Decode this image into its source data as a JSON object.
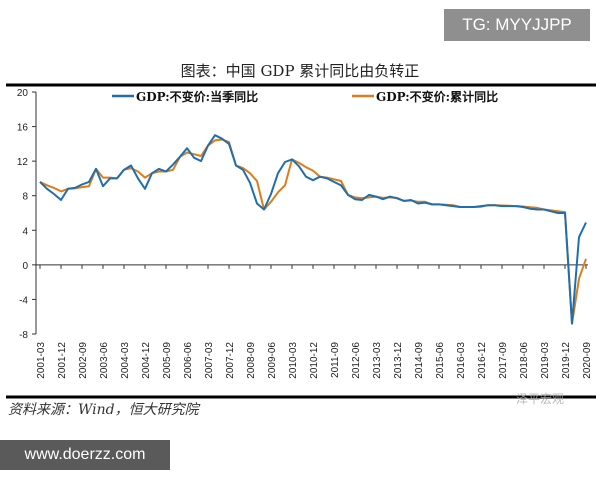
{
  "badge": "TG: MYYJJPP",
  "footer_site": "www.doerzz.com",
  "watermark": "泽平宏观",
  "source": "资料来源：Wind，恒大研究院",
  "chart_data": {
    "type": "line",
    "title": "图表：中国 GDP 累计同比由负转正",
    "xlabel": "",
    "ylabel": "",
    "ylim": [
      -8,
      20
    ],
    "yticks": [
      20,
      16,
      12,
      8,
      4,
      0,
      -4,
      -8
    ],
    "grid": false,
    "legend": "top",
    "x_start": "2001-03",
    "x_end": "2020-09",
    "x_frequency": "quarterly",
    "xtick_labels": [
      "2001-03",
      "2001-12",
      "2002-09",
      "2003-06",
      "2004-03",
      "2004-12",
      "2005-09",
      "2006-06",
      "2007-03",
      "2007-12",
      "2008-09",
      "2009-06",
      "2010-03",
      "2010-12",
      "2011-09",
      "2012-06",
      "2013-03",
      "2013-12",
      "2014-09",
      "2015-06",
      "2016-03",
      "2016-12",
      "2017-09",
      "2018-06",
      "2019-03",
      "2019-12",
      "2020-09"
    ],
    "series": [
      {
        "name": "GDP:不变价:当季同比",
        "color": "#1f6fae",
        "values": [
          9.6,
          8.8,
          8.2,
          7.5,
          8.8,
          8.9,
          9.3,
          9.6,
          11.1,
          9.1,
          10.0,
          10.0,
          11.0,
          11.5,
          10.0,
          8.8,
          10.6,
          11.1,
          10.8,
          11.6,
          12.5,
          13.5,
          12.4,
          12.0,
          13.8,
          15.0,
          14.6,
          14.0,
          11.5,
          11.0,
          9.5,
          7.1,
          6.4,
          8.2,
          10.6,
          11.9,
          12.2,
          11.4,
          10.2,
          9.8,
          10.2,
          10.0,
          9.6,
          9.2,
          8.1,
          7.6,
          7.5,
          8.1,
          7.9,
          7.6,
          7.9,
          7.7,
          7.4,
          7.5,
          7.1,
          7.2,
          7.0,
          7.0,
          6.9,
          6.8,
          6.7,
          6.7,
          6.7,
          6.8,
          6.9,
          6.9,
          6.8,
          6.8,
          6.8,
          6.7,
          6.5,
          6.4,
          6.4,
          6.2,
          6.0,
          6.0,
          -6.8,
          3.2,
          4.9
        ]
      },
      {
        "name": "GDP:不变价:累计同比",
        "color": "#e07b1a",
        "values": [
          9.6,
          9.2,
          8.9,
          8.5,
          8.8,
          8.85,
          9.0,
          9.1,
          11.1,
          10.1,
          10.1,
          10.0,
          11.0,
          11.2,
          10.8,
          10.1,
          10.6,
          10.8,
          10.8,
          11.0,
          12.5,
          13.0,
          12.8,
          12.6,
          13.8,
          14.4,
          14.5,
          14.2,
          11.5,
          11.2,
          10.6,
          9.7,
          6.4,
          7.3,
          8.4,
          9.2,
          12.2,
          11.8,
          11.3,
          10.9,
          10.2,
          10.1,
          9.9,
          9.7,
          8.1,
          7.8,
          7.7,
          7.8,
          7.9,
          7.75,
          7.8,
          7.75,
          7.4,
          7.45,
          7.3,
          7.3,
          7.0,
          7.0,
          6.95,
          6.9,
          6.7,
          6.7,
          6.7,
          6.72,
          6.9,
          6.9,
          6.87,
          6.85,
          6.8,
          6.75,
          6.67,
          6.6,
          6.4,
          6.3,
          6.2,
          6.1,
          -6.8,
          -1.6,
          0.7
        ]
      }
    ]
  }
}
